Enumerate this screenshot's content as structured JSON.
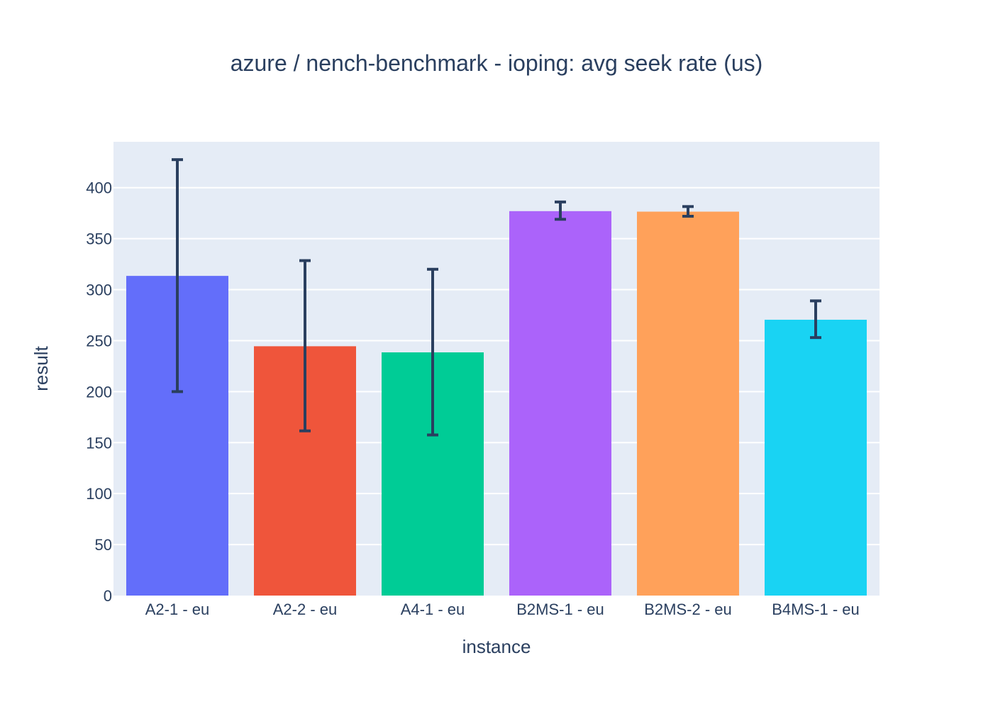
{
  "chart_data": {
    "type": "bar",
    "title": "azure / nench-benchmark - ioping: avg seek rate (us)",
    "xlabel": "instance",
    "ylabel": "result",
    "categories": [
      "A2-1 - eu",
      "A2-2 - eu",
      "A4-1 - eu",
      "B2MS-1 - eu",
      "B2MS-2 - eu",
      "B4MS-1 - eu"
    ],
    "values": [
      313.5,
      244.5,
      238.5,
      377.0,
      376.5,
      270.5
    ],
    "error_low": [
      200,
      161.5,
      157.5,
      369,
      372,
      253
    ],
    "error_high": [
      427.5,
      328.5,
      320,
      386,
      381.5,
      289
    ],
    "colors": [
      "#636efa",
      "#ef553b",
      "#00cc96",
      "#ab63fa",
      "#ffa15a",
      "#19d3f3"
    ],
    "ylim": [
      0,
      445
    ],
    "yticks": [
      0,
      50,
      100,
      150,
      200,
      250,
      300,
      350,
      400
    ],
    "grid": true,
    "legend": "none",
    "plot_bg": "#e5ecf6",
    "error_color": "#2a3f5f"
  }
}
